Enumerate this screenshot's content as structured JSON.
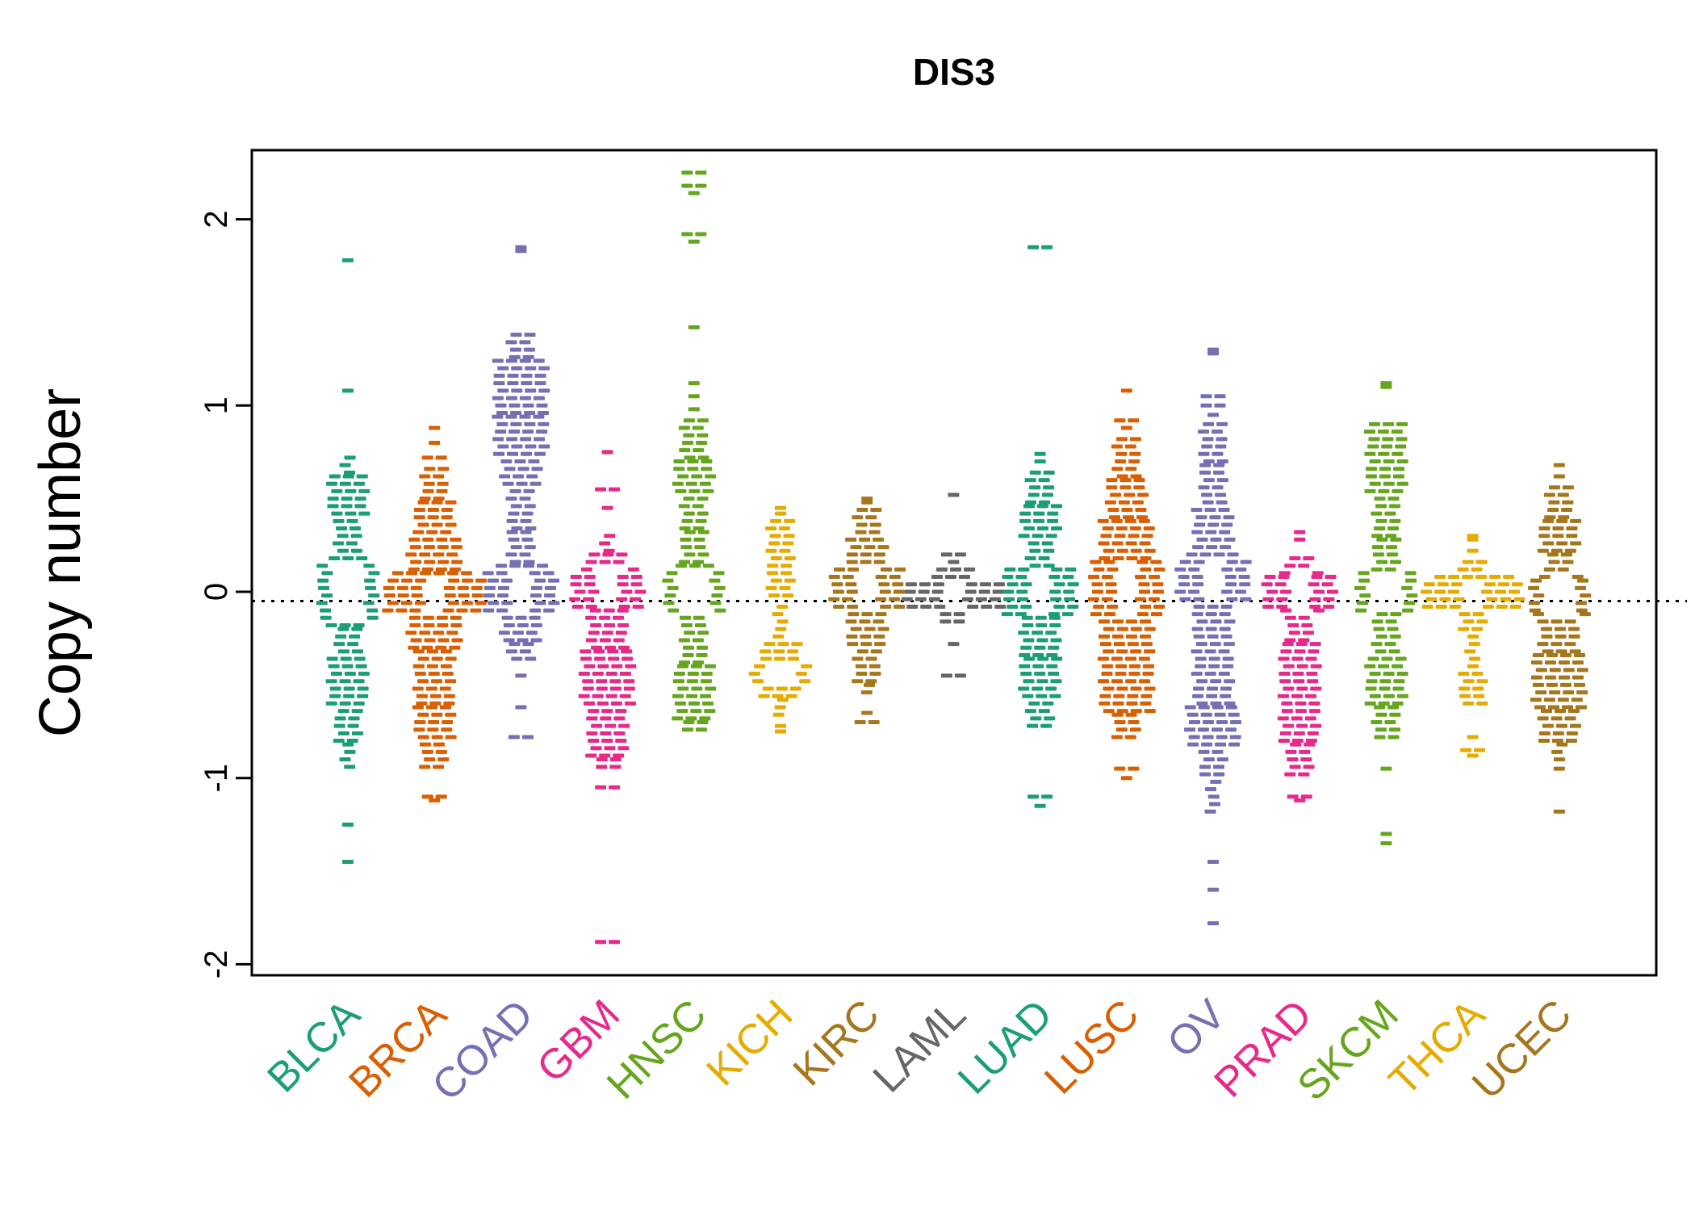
{
  "chart_data": {
    "type": "scatter",
    "subtype": "beeswarm-violin",
    "title": "DIS3",
    "xlabel": "",
    "ylabel": "Copy number",
    "ylim": [
      -2.06,
      2.37
    ],
    "yticks": [
      -2,
      -1,
      0,
      1,
      2
    ],
    "grid": false,
    "reference_line": {
      "y": -0.05,
      "style": "dotted",
      "color": "#000000"
    },
    "palette_note": "Dark2 recycled",
    "series": [
      {
        "name": "BLCA",
        "color": "#1B9E77",
        "hollow": {
          "c": 0,
          "r": 0.14
        },
        "segments": [
          [
            0.72,
            0.64,
            1
          ],
          [
            0.62,
            0.4,
            3
          ],
          [
            0.38,
            0.2,
            2
          ],
          [
            0.18,
            -0.18,
            3
          ],
          [
            -0.2,
            -0.34,
            2
          ],
          [
            -0.36,
            -0.62,
            3
          ],
          [
            -0.64,
            -0.8,
            2
          ],
          [
            -0.82,
            -0.96,
            1
          ]
        ],
        "outliers": [
          [
            1.78,
            1
          ],
          [
            1.08,
            1
          ],
          [
            -1.25,
            1
          ],
          [
            -1.45,
            1
          ]
        ]
      },
      {
        "name": "BRCA",
        "color": "#D95F02",
        "hollow": {
          "c": -0.02,
          "r": 0.1
        },
        "segments": [
          [
            0.66,
            0.5,
            2
          ],
          [
            0.48,
            0.3,
            3
          ],
          [
            0.28,
            0.12,
            4
          ],
          [
            0.1,
            -0.12,
            6
          ],
          [
            -0.14,
            -0.3,
            4
          ],
          [
            -0.32,
            -0.6,
            3
          ],
          [
            -0.62,
            -0.8,
            3
          ],
          [
            -0.82,
            -0.96,
            2
          ]
        ],
        "outliers": [
          [
            0.88,
            1
          ],
          [
            0.8,
            1
          ],
          [
            0.72,
            2
          ],
          [
            -1.1,
            2
          ],
          [
            -1.12,
            1
          ]
        ]
      },
      {
        "name": "COAD",
        "color": "#7570B3",
        "hollow": {
          "c": 0,
          "r": 0.12
        },
        "segments": [
          [
            1.38,
            1.26,
            2
          ],
          [
            1.24,
            0.96,
            4
          ],
          [
            0.94,
            0.72,
            4
          ],
          [
            0.7,
            0.56,
            3
          ],
          [
            0.54,
            0.34,
            2
          ],
          [
            0.32,
            0.16,
            2
          ],
          [
            0.14,
            -0.12,
            4
          ],
          [
            -0.14,
            -0.26,
            3
          ],
          [
            -0.28,
            -0.36,
            2
          ]
        ],
        "outliers": [
          [
            1.85,
            1
          ],
          [
            1.83,
            1
          ],
          [
            -0.45,
            1
          ],
          [
            -0.62,
            1
          ],
          [
            -0.78,
            2
          ]
        ]
      },
      {
        "name": "GBM",
        "color": "#E7298A",
        "hollow": {
          "c": 0.02,
          "r": 0.1
        },
        "segments": [
          [
            0.3,
            0.22,
            1
          ],
          [
            0.2,
            0.1,
            3
          ],
          [
            0.08,
            -0.08,
            4
          ],
          [
            -0.1,
            -0.3,
            3
          ],
          [
            -0.32,
            -0.62,
            4
          ],
          [
            -0.64,
            -0.88,
            3
          ],
          [
            -0.9,
            -0.96,
            2
          ]
        ],
        "outliers": [
          [
            0.75,
            1
          ],
          [
            0.55,
            2
          ],
          [
            0.45,
            1
          ],
          [
            -1.05,
            2
          ],
          [
            -1.88,
            2
          ]
        ]
      },
      {
        "name": "HNSC",
        "color": "#66A61E",
        "hollow": {
          "c": 0,
          "r": 0.12
        },
        "segments": [
          [
            0.92,
            0.72,
            2
          ],
          [
            0.7,
            0.52,
            3
          ],
          [
            0.5,
            0.34,
            2
          ],
          [
            0.32,
            0.16,
            2
          ],
          [
            0.14,
            -0.12,
            3
          ],
          [
            -0.14,
            -0.38,
            2
          ],
          [
            -0.4,
            -0.68,
            3
          ],
          [
            -0.7,
            -0.76,
            2
          ]
        ],
        "outliers": [
          [
            2.25,
            2
          ],
          [
            2.18,
            2
          ],
          [
            2.14,
            1
          ],
          [
            1.92,
            2
          ],
          [
            1.88,
            1
          ],
          [
            1.42,
            1
          ],
          [
            1.12,
            1
          ],
          [
            1.05,
            1
          ],
          [
            0.98,
            1
          ]
        ]
      },
      {
        "name": "KICH",
        "color": "#E6AB02",
        "hollow": {
          "c": -0.44,
          "r": 0.08
        },
        "segments": [
          [
            0.38,
            0.24,
            2
          ],
          [
            0.22,
            0.08,
            2
          ],
          [
            0.06,
            -0.04,
            2
          ],
          [
            -0.08,
            -0.24,
            1
          ],
          [
            -0.28,
            -0.42,
            3
          ],
          [
            -0.44,
            -0.56,
            3
          ],
          [
            -0.58,
            -0.68,
            1
          ]
        ],
        "outliers": [
          [
            0.45,
            1
          ],
          [
            0.42,
            1
          ],
          [
            -0.72,
            1
          ],
          [
            -0.75,
            1
          ]
        ]
      },
      {
        "name": "KIRC",
        "color": "#A6761D",
        "hollow": {
          "c": 0.02,
          "r": 0.1
        },
        "segments": [
          [
            0.44,
            0.3,
            2
          ],
          [
            0.28,
            0.14,
            3
          ],
          [
            0.12,
            -0.1,
            4
          ],
          [
            -0.12,
            -0.3,
            3
          ],
          [
            -0.32,
            -0.48,
            2
          ],
          [
            -0.5,
            -0.56,
            1
          ]
        ],
        "outliers": [
          [
            0.5,
            1
          ],
          [
            0.48,
            1
          ],
          [
            -0.65,
            1
          ],
          [
            -0.7,
            2
          ]
        ]
      },
      {
        "name": "LAML",
        "color": "#666666",
        "hollow": {
          "c": -0.03,
          "r": 0.07
        },
        "segments": [
          [
            0.12,
            0.06,
            3
          ],
          [
            0.04,
            -0.1,
            6
          ],
          [
            -0.12,
            -0.18,
            2
          ]
        ],
        "outliers": [
          [
            0.52,
            1
          ],
          [
            0.2,
            2
          ],
          [
            0.16,
            1
          ],
          [
            -0.28,
            1
          ],
          [
            -0.45,
            2
          ]
        ]
      },
      {
        "name": "LUAD",
        "color": "#1B9E77",
        "hollow": {
          "c": 0,
          "r": 0.12
        },
        "segments": [
          [
            0.64,
            0.48,
            2
          ],
          [
            0.46,
            0.28,
            3
          ],
          [
            0.26,
            0.14,
            2
          ],
          [
            0.12,
            -0.12,
            4
          ],
          [
            -0.14,
            -0.34,
            3
          ],
          [
            -0.36,
            -0.58,
            3
          ],
          [
            -0.6,
            -0.75,
            2
          ]
        ],
        "outliers": [
          [
            1.85,
            2
          ],
          [
            0.74,
            1
          ],
          [
            0.7,
            1
          ],
          [
            -1.1,
            2
          ],
          [
            -1.15,
            1
          ]
        ]
      },
      {
        "name": "LUSC",
        "color": "#D95F02",
        "hollow": {
          "c": 0.02,
          "r": 0.14
        },
        "segments": [
          [
            0.82,
            0.62,
            2
          ],
          [
            0.6,
            0.4,
            3
          ],
          [
            0.38,
            0.18,
            4
          ],
          [
            0.16,
            -0.14,
            4
          ],
          [
            -0.16,
            -0.38,
            4
          ],
          [
            -0.4,
            -0.64,
            4
          ],
          [
            -0.66,
            -0.8,
            2
          ]
        ],
        "outliers": [
          [
            1.08,
            1
          ],
          [
            0.92,
            2
          ],
          [
            0.88,
            1
          ],
          [
            -0.95,
            2
          ],
          [
            -1.0,
            1
          ]
        ]
      },
      {
        "name": "OV",
        "color": "#7570B3",
        "hollow": {
          "c": 0.06,
          "r": 0.12
        },
        "segments": [
          [
            0.9,
            0.7,
            2
          ],
          [
            0.68,
            0.46,
            2
          ],
          [
            0.44,
            0.22,
            3
          ],
          [
            0.2,
            -0.06,
            4
          ],
          [
            -0.08,
            -0.3,
            3
          ],
          [
            -0.32,
            -0.6,
            3
          ],
          [
            -0.62,
            -0.84,
            4
          ],
          [
            -0.86,
            -1.0,
            2
          ],
          [
            -1.02,
            -1.2,
            1
          ]
        ],
        "outliers": [
          [
            1.3,
            1
          ],
          [
            1.28,
            1
          ],
          [
            1.05,
            2
          ],
          [
            1.0,
            2
          ],
          [
            0.95,
            1
          ],
          [
            -1.45,
            1
          ],
          [
            -1.6,
            1
          ],
          [
            -1.78,
            1
          ]
        ]
      },
      {
        "name": "PRAD",
        "color": "#E7298A",
        "hollow": {
          "c": 0,
          "r": 0.1
        },
        "segments": [
          [
            0.18,
            0.1,
            2
          ],
          [
            0.08,
            -0.08,
            4
          ],
          [
            -0.1,
            -0.26,
            2
          ],
          [
            -0.28,
            -0.58,
            3
          ],
          [
            -0.6,
            -0.8,
            3
          ],
          [
            -0.82,
            -1.0,
            2
          ]
        ],
        "outliers": [
          [
            0.32,
            1
          ],
          [
            0.28,
            1
          ],
          [
            -1.1,
            2
          ],
          [
            -1.12,
            1
          ]
        ]
      },
      {
        "name": "SKCM",
        "color": "#66A61E",
        "hollow": {
          "c": 0,
          "r": 0.1
        },
        "segments": [
          [
            0.9,
            0.72,
            3
          ],
          [
            0.7,
            0.52,
            3
          ],
          [
            0.5,
            0.3,
            2
          ],
          [
            0.28,
            0.12,
            2
          ],
          [
            0.1,
            -0.1,
            3
          ],
          [
            -0.12,
            -0.34,
            2
          ],
          [
            -0.36,
            -0.6,
            3
          ],
          [
            -0.62,
            -0.78,
            2
          ]
        ],
        "outliers": [
          [
            1.12,
            1
          ],
          [
            1.1,
            1
          ],
          [
            -0.95,
            1
          ],
          [
            -1.3,
            1
          ],
          [
            -1.35,
            1
          ]
        ]
      },
      {
        "name": "THCA",
        "color": "#E6AB02",
        "hollow": {
          "c": -0.02,
          "r": 0.08
        },
        "segments": [
          [
            0.16,
            0.1,
            2
          ],
          [
            0.08,
            -0.1,
            6
          ],
          [
            -0.12,
            -0.2,
            2
          ],
          [
            -0.24,
            -0.4,
            1
          ],
          [
            -0.44,
            -0.6,
            2
          ]
        ],
        "outliers": [
          [
            0.3,
            1
          ],
          [
            0.28,
            1
          ],
          [
            0.22,
            1
          ],
          [
            -0.78,
            1
          ],
          [
            -0.85,
            2
          ],
          [
            -0.88,
            1
          ]
        ]
      },
      {
        "name": "UCEC",
        "color": "#A6761D",
        "hollow": {
          "c": -0.02,
          "r": 0.1
        },
        "segments": [
          [
            0.56,
            0.4,
            2
          ],
          [
            0.38,
            0.22,
            3
          ],
          [
            0.2,
            0.08,
            2
          ],
          [
            0.06,
            -0.1,
            3
          ],
          [
            -0.12,
            -0.32,
            3
          ],
          [
            -0.34,
            -0.62,
            4
          ],
          [
            -0.64,
            -0.8,
            3
          ],
          [
            -0.82,
            -0.9,
            1
          ]
        ],
        "outliers": [
          [
            0.68,
            1
          ],
          [
            0.62,
            1
          ],
          [
            -0.95,
            1
          ],
          [
            -1.18,
            1
          ]
        ]
      }
    ]
  }
}
